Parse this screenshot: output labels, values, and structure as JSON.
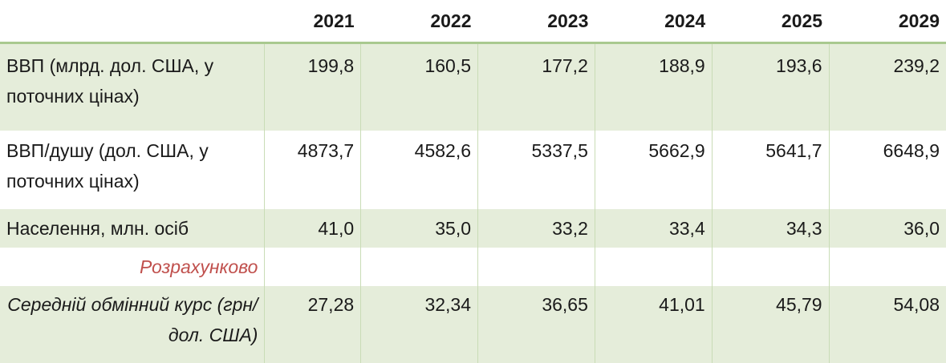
{
  "table": {
    "headers": [
      "",
      "2021",
      "2022",
      "2023",
      "2024",
      "2025",
      "2029"
    ],
    "rows": [
      {
        "label": "ВВП (млрд. дол. США, у поточних цінах)",
        "values": [
          "199,8",
          "160,5",
          "177,2",
          "188,9",
          "193,6",
          "239,2"
        ]
      },
      {
        "label": "ВВП/душу (дол. США, у поточних цінах)",
        "values": [
          "4873,7",
          "4582,6",
          "5337,5",
          "5662,9",
          "5641,7",
          "6648,9"
        ]
      },
      {
        "label": "Населення, млн. осіб",
        "values": [
          "41,0",
          "35,0",
          "33,2",
          "33,4",
          "34,3",
          "36,0"
        ]
      },
      {
        "label": "Розрахунково",
        "values": [
          "",
          "",
          "",
          "",
          "",
          ""
        ]
      },
      {
        "label": "Середній обмінний курс (грн/дол. США)",
        "values": [
          "27,28",
          "32,34",
          "36,65",
          "41,01",
          "45,79",
          "54,08"
        ]
      }
    ]
  },
  "colors": {
    "row_shade": "#e5edda",
    "header_rule": "#a9c98f",
    "note_text": "#c0504d"
  }
}
